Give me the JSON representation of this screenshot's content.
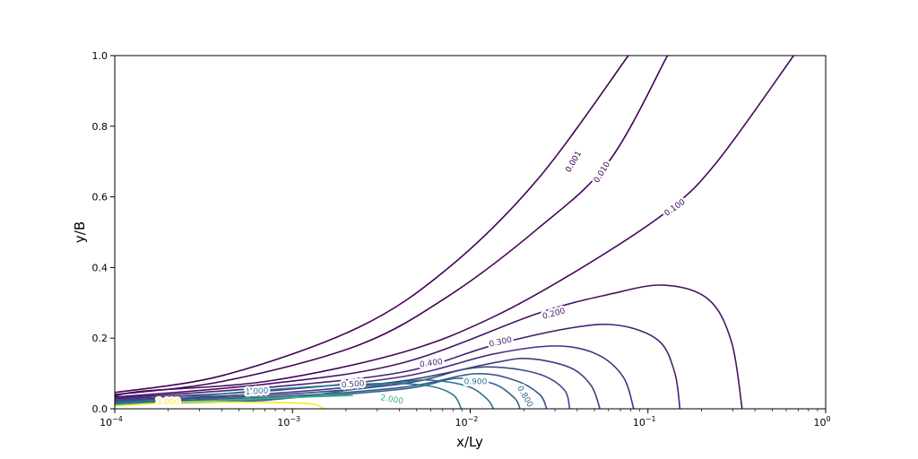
{
  "chart_data": {
    "type": "contour",
    "xlabel": "x/Ly",
    "ylabel": "y/B",
    "xscale": "log",
    "xlim": [
      0.0001,
      1
    ],
    "ylim": [
      0,
      1
    ],
    "xticks": [
      {
        "exp": -4,
        "label": "10",
        "sup": "−4"
      },
      {
        "exp": -3,
        "label": "10",
        "sup": "−3"
      },
      {
        "exp": -2,
        "label": "10",
        "sup": "−2"
      },
      {
        "exp": -1,
        "label": "10",
        "sup": "−1"
      },
      {
        "exp": 0,
        "label": "10",
        "sup": "0"
      }
    ],
    "yticks": [
      "0.0",
      "0.2",
      "0.4",
      "0.6",
      "0.8",
      "1.0"
    ],
    "contours": [
      {
        "level": 0.001,
        "label": "0.001",
        "color": "#440154",
        "label_at": [
          -1.42,
          0.7
        ],
        "label_rot": -60,
        "points": [
          [
            -4,
            0.046
          ],
          [
            -3.38,
            0.096
          ],
          [
            -2.63,
            0.23
          ],
          [
            -2.12,
            0.4
          ],
          [
            -1.62,
            0.65
          ],
          [
            -1.11,
            1.0
          ]
        ]
      },
      {
        "level": 0.01,
        "label": "0.010",
        "color": "#440256",
        "label_at": [
          -1.26,
          0.67
        ],
        "label_rot": -58,
        "points": [
          [
            -4,
            0.04
          ],
          [
            -3.38,
            0.079
          ],
          [
            -2.63,
            0.18
          ],
          [
            -2.12,
            0.32
          ],
          [
            -1.62,
            0.51
          ],
          [
            -1.22,
            0.7
          ],
          [
            -0.89,
            1.0
          ]
        ]
      },
      {
        "level": 0.1,
        "label": "0.100",
        "color": "#46085c",
        "label_at": [
          -0.85,
          0.57
        ],
        "label_rot": -35,
        "points": [
          [
            -4,
            0.036
          ],
          [
            -3.84,
            0.05
          ],
          [
            -3.13,
            0.079
          ],
          [
            -2.38,
            0.16
          ],
          [
            -1.87,
            0.26
          ],
          [
            -1.37,
            0.4
          ],
          [
            -0.89,
            0.56
          ],
          [
            -0.61,
            0.7
          ],
          [
            -0.18,
            1.0
          ]
        ]
      },
      {
        "level": 0.2,
        "label": "0.200",
        "color": "#471365",
        "label_at": [
          -1.53,
          0.27
        ],
        "label_rot": -15,
        "points": [
          [
            -4,
            0.033
          ],
          [
            -3.13,
            0.071
          ],
          [
            -2.38,
            0.13
          ],
          [
            -1.62,
            0.27
          ],
          [
            -1.21,
            0.325
          ],
          [
            -0.91,
            0.35
          ],
          [
            -0.66,
            0.31
          ],
          [
            -0.53,
            0.19
          ],
          [
            -0.47,
            0.0
          ]
        ]
      },
      {
        "level": 0.3,
        "label": "0.300",
        "color": "#482173",
        "label_at": [
          -1.83,
          0.19
        ],
        "label_rot": -12,
        "points": [
          [
            -4,
            0.03
          ],
          [
            -3.13,
            0.061
          ],
          [
            -2.38,
            0.104
          ],
          [
            -1.87,
            0.18
          ],
          [
            -1.42,
            0.23
          ],
          [
            -1.16,
            0.236
          ],
          [
            -0.94,
            0.193
          ],
          [
            -0.85,
            0.104
          ],
          [
            -0.82,
            0.0
          ]
        ]
      },
      {
        "level": 0.4,
        "label": "0.400",
        "color": "#472f7d",
        "label_at": [
          -2.22,
          0.13
        ],
        "label_rot": -8,
        "points": [
          [
            -4,
            0.028
          ],
          [
            -3.13,
            0.051
          ],
          [
            -2.38,
            0.091
          ],
          [
            -1.87,
            0.155
          ],
          [
            -1.52,
            0.178
          ],
          [
            -1.29,
            0.155
          ],
          [
            -1.14,
            0.091
          ],
          [
            -1.08,
            0.0
          ]
        ]
      },
      {
        "level": 0.5,
        "label": "0.500",
        "color": "#443a83",
        "label_at": [
          -2.66,
          0.07
        ],
        "label_rot": -5,
        "points": [
          [
            -4,
            0.025
          ],
          [
            -3.13,
            0.043
          ],
          [
            -2.38,
            0.079
          ],
          [
            -1.87,
            0.13
          ],
          [
            -1.67,
            0.142
          ],
          [
            -1.44,
            0.117
          ],
          [
            -1.32,
            0.066
          ],
          [
            -1.27,
            0.0
          ]
        ]
      },
      {
        "level": 0.6,
        "label": "",
        "color": "#3e4989",
        "label_at": null,
        "label_rot": 0,
        "points": [
          [
            -4,
            0.023
          ],
          [
            -3.13,
            0.038
          ],
          [
            -2.38,
            0.071
          ],
          [
            -2.03,
            0.112
          ],
          [
            -1.82,
            0.117
          ],
          [
            -1.6,
            0.096
          ],
          [
            -1.47,
            0.053
          ],
          [
            -1.44,
            0.0
          ]
        ]
      },
      {
        "level": 0.7,
        "label": "",
        "color": "#38588c",
        "label_at": null,
        "label_rot": 0,
        "points": [
          [
            -4,
            0.02
          ],
          [
            -3.13,
            0.033
          ],
          [
            -2.38,
            0.061
          ],
          [
            -1.98,
            0.099
          ],
          [
            -1.75,
            0.081
          ],
          [
            -1.61,
            0.041
          ],
          [
            -1.57,
            0.0
          ]
        ]
      },
      {
        "level": 0.8,
        "label": "0.800",
        "color": "#33638d",
        "label_at": [
          -1.69,
          0.035
        ],
        "label_rot": 60,
        "points": [
          [
            -4,
            0.018
          ],
          [
            -3.13,
            0.028
          ],
          [
            -2.38,
            0.056
          ],
          [
            -2.08,
            0.086
          ],
          [
            -1.87,
            0.071
          ],
          [
            -1.75,
            0.03
          ],
          [
            -1.72,
            0.0
          ]
        ]
      },
      {
        "level": 0.9,
        "label": "0.900",
        "color": "#2d708e",
        "label_at": [
          -1.97,
          0.078
        ],
        "label_rot": 0,
        "points": [
          [
            -4,
            0.015
          ],
          [
            -3.13,
            0.025
          ],
          [
            -2.38,
            0.076
          ],
          [
            -2.18,
            0.079
          ],
          [
            -2.0,
            0.061
          ],
          [
            -1.9,
            0.025
          ],
          [
            -1.87,
            0.0
          ]
        ]
      },
      {
        "level": 1.0,
        "label": "1.000",
        "color": "#287c8e",
        "label_at": [
          -3.2,
          0.05
        ],
        "label_rot": -3,
        "points": [
          [
            -4,
            0.013
          ],
          [
            -3.2,
            0.051
          ],
          [
            -2.55,
            0.071
          ],
          [
            -2.25,
            0.066
          ],
          [
            -2.1,
            0.041
          ],
          [
            -2.05,
            0.0
          ]
        ]
      },
      {
        "level": 2.0,
        "label": "2.000",
        "color": "#35b779",
        "label_at": [
          -2.44,
          0.027
        ],
        "label_rot": 10,
        "points": [
          [
            -4,
            0.01
          ],
          [
            -3.38,
            0.025
          ],
          [
            -2.66,
            0.038
          ]
        ]
      },
      {
        "level": 3.0,
        "label": "3.000",
        "color": "#fde725",
        "label_at": [
          -3.7,
          0.02
        ],
        "label_rot": 0,
        "points": [
          [
            -4,
            0.008
          ],
          [
            -3.64,
            0.018
          ],
          [
            -3.13,
            0.018
          ],
          [
            -2.92,
            0.015
          ],
          [
            -2.85,
            0.008
          ],
          [
            -2.82,
            0.0
          ]
        ]
      }
    ]
  }
}
